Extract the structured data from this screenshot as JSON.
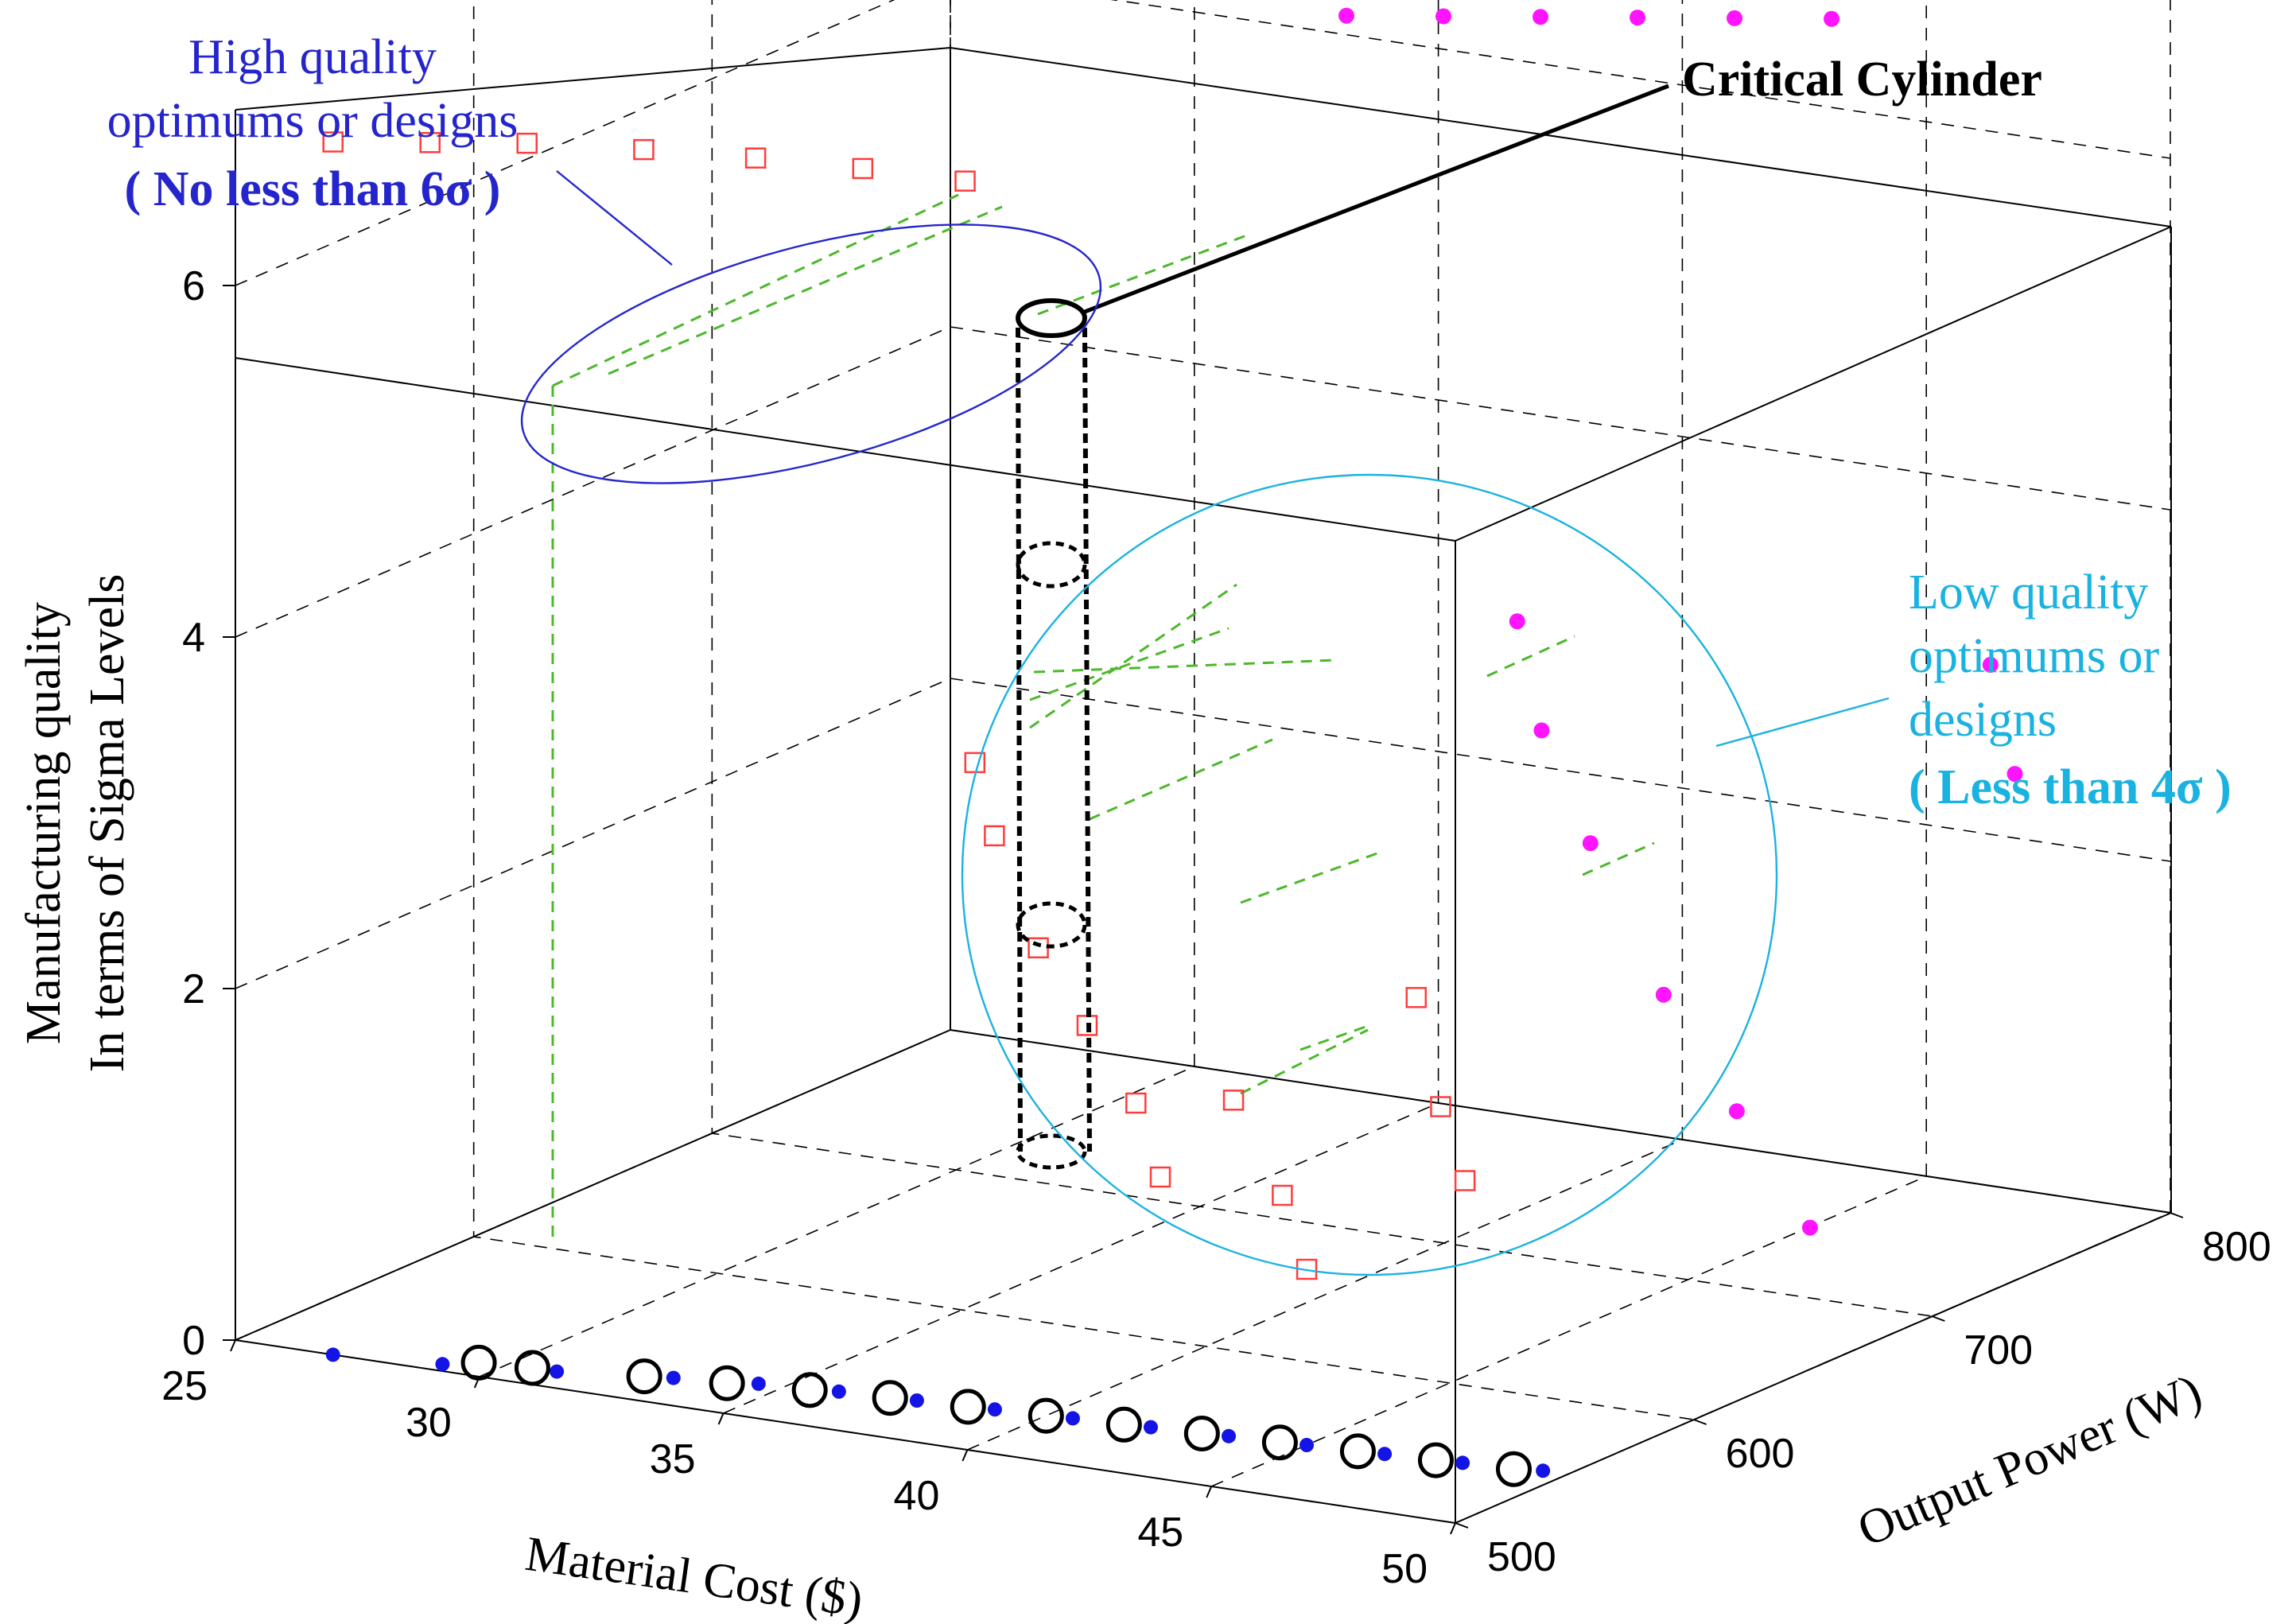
{
  "chart_data": {
    "type": "scatter3d",
    "title": "",
    "xlabel": "Material Cost ($)",
    "ylabel": "Output Power (W)",
    "zlabel_lines": [
      "Manufacturing quality",
      "In terms of Sigma Levels"
    ],
    "xlim": [
      25,
      50
    ],
    "ylim": [
      500,
      800
    ],
    "zlim": [
      0,
      7
    ],
    "x_ticks": [
      "25",
      "30",
      "35",
      "40",
      "45",
      "50"
    ],
    "y_ticks": [
      "500",
      "600",
      "700",
      "800"
    ],
    "z_ticks": [
      "0",
      "2",
      "4",
      "6"
    ],
    "grid": true,
    "colors": {
      "blue_points": "#1414e6",
      "magenta_points": "#ff14ff",
      "red_squares": "#ff3c3c",
      "black_circles": "#000000",
      "green_links": "#4cb82c",
      "high_quality": "#2525cc",
      "low_quality": "#1ab2e0",
      "cylinder": "#000000"
    },
    "series": [
      {
        "name": "Pareto front on floor (blue dots)",
        "marker": "dot",
        "points": [
          [
            27.0,
            500,
            0
          ],
          [
            29.0,
            505,
            0
          ],
          [
            31.0,
            512,
            0
          ],
          [
            33.0,
            520,
            0
          ],
          [
            34.5,
            525,
            0
          ],
          [
            36.0,
            528,
            0
          ],
          [
            37.5,
            530,
            0
          ],
          [
            39.0,
            532,
            0
          ],
          [
            40.5,
            534,
            0
          ],
          [
            42.0,
            536,
            0
          ],
          [
            43.5,
            538,
            0
          ],
          [
            45.0,
            540,
            0
          ],
          [
            46.5,
            542,
            0
          ],
          [
            48.0,
            544,
            0
          ],
          [
            49.5,
            547,
            0
          ]
        ]
      },
      {
        "name": "Projected optima on floor (black circles)",
        "marker": "circle",
        "points": [
          [
            29.5,
            510,
            0
          ],
          [
            30.5,
            512,
            0
          ],
          [
            32.5,
            518,
            0
          ],
          [
            34.0,
            522,
            0
          ],
          [
            35.5,
            526,
            0
          ],
          [
            37.0,
            529,
            0
          ],
          [
            38.5,
            531,
            0
          ],
          [
            40.0,
            533,
            0
          ],
          [
            41.5,
            535,
            0
          ],
          [
            43.0,
            537,
            0
          ],
          [
            44.5,
            539,
            0
          ],
          [
            46.0,
            541,
            0
          ],
          [
            47.5,
            543,
            0
          ],
          [
            49.0,
            545,
            0
          ]
        ]
      },
      {
        "name": "High quality optima (red squares)",
        "marker": "square",
        "points": [
          [
            27.0,
            500,
            6.9
          ],
          [
            28.5,
            510,
            6.9
          ],
          [
            30.0,
            520,
            6.9
          ],
          [
            32.0,
            528,
            6.9
          ],
          [
            34.0,
            534,
            6.9
          ],
          [
            36.0,
            538,
            6.9
          ],
          [
            38.0,
            540,
            6.9
          ]
        ]
      },
      {
        "name": "High quality optima projected on back wall (magenta dots)",
        "marker": "dot",
        "points": [
          [
            38.0,
            700,
            6.9
          ],
          [
            39.5,
            710,
            6.9
          ],
          [
            41.0,
            720,
            6.9
          ],
          [
            42.5,
            730,
            6.9
          ],
          [
            44.0,
            740,
            6.9
          ],
          [
            45.5,
            750,
            6.9
          ]
        ]
      },
      {
        "name": "Low quality optima (red squares)",
        "marker": "square",
        "points": [
          [
            38.2,
            540,
            3.6
          ],
          [
            38.6,
            540,
            3.2
          ],
          [
            39.5,
            540,
            2.6
          ],
          [
            40.5,
            540,
            2.2
          ],
          [
            41.5,
            540,
            1.8
          ],
          [
            42.0,
            540,
            1.4
          ],
          [
            43.5,
            540,
            1.9
          ],
          [
            44.5,
            540,
            1.4
          ],
          [
            45.0,
            540,
            1.0
          ],
          [
            47.0,
            545,
            2.6
          ],
          [
            47.5,
            545,
            2.0
          ],
          [
            48.0,
            545,
            1.6
          ]
        ]
      },
      {
        "name": "Low quality optima projected (magenta dots)",
        "marker": "dot",
        "points": [
          [
            41.5,
            700,
            3.6
          ],
          [
            42.0,
            700,
            3.0
          ],
          [
            43.0,
            700,
            2.4
          ],
          [
            44.5,
            700,
            1.6
          ],
          [
            46.0,
            700,
            1.0
          ],
          [
            47.5,
            700,
            0.4
          ],
          [
            49.0,
            745,
            3.4
          ],
          [
            49.5,
            745,
            2.8
          ]
        ]
      }
    ],
    "annotations": {
      "high_quality": {
        "lines": [
          "High quality",
          "optimums or designs"
        ],
        "bold_line": "( No less than 6σ )"
      },
      "low_quality": {
        "lines": [
          "Low quality",
          "optimums or",
          "designs"
        ],
        "bold_line": "( Less than 4σ )"
      },
      "cylinder": "Critical Cylinder"
    }
  }
}
